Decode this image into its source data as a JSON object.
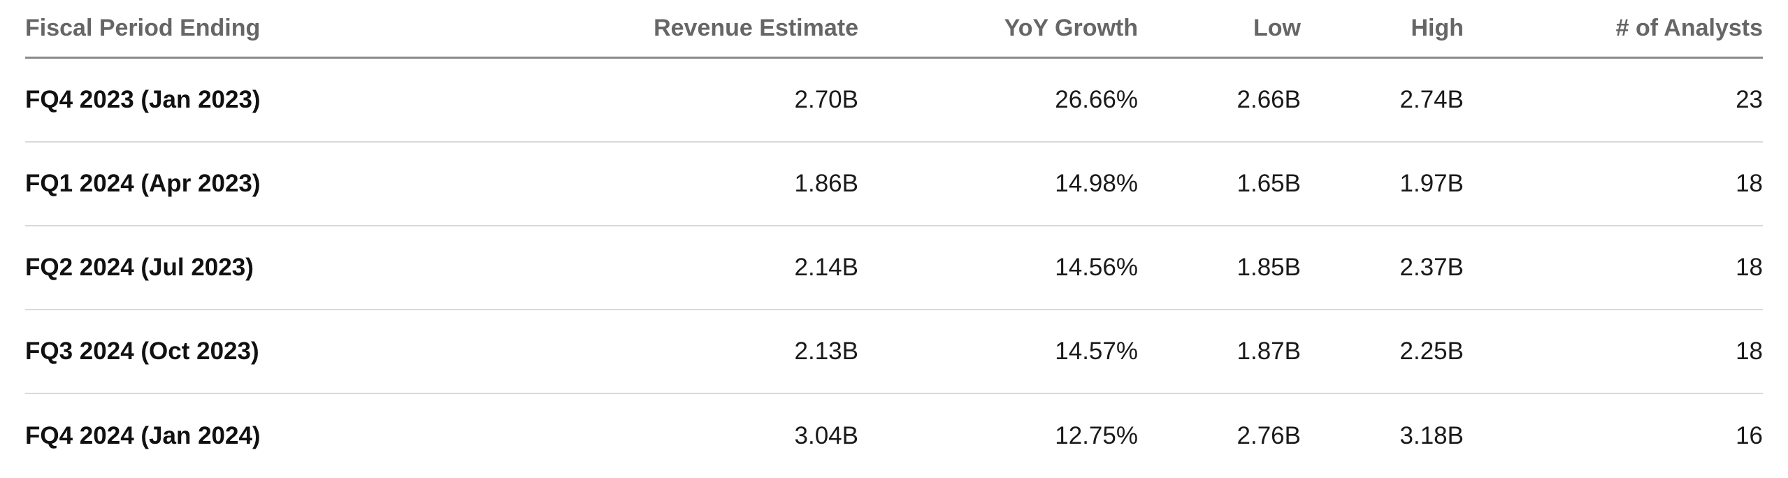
{
  "table": {
    "headers": {
      "period": "Fiscal Period Ending",
      "revenue": "Revenue Estimate",
      "yoy": "YoY Growth",
      "low": "Low",
      "high": "High",
      "analysts": "# of Analysts"
    },
    "rows": [
      {
        "period": "FQ4 2023 (Jan 2023)",
        "revenue": "2.70B",
        "yoy": "26.66%",
        "low": "2.66B",
        "high": "2.74B",
        "analysts": "23"
      },
      {
        "period": "FQ1 2024 (Apr 2023)",
        "revenue": "1.86B",
        "yoy": "14.98%",
        "low": "1.65B",
        "high": "1.97B",
        "analysts": "18"
      },
      {
        "period": "FQ2 2024 (Jul 2023)",
        "revenue": "2.14B",
        "yoy": "14.56%",
        "low": "1.85B",
        "high": "2.37B",
        "analysts": "18"
      },
      {
        "period": "FQ3 2024 (Oct 2023)",
        "revenue": "2.13B",
        "yoy": "14.57%",
        "low": "1.87B",
        "high": "2.25B",
        "analysts": "18"
      },
      {
        "period": "FQ4 2024 (Jan 2024)",
        "revenue": "3.04B",
        "yoy": "12.75%",
        "low": "2.76B",
        "high": "3.18B",
        "analysts": "16"
      }
    ]
  }
}
